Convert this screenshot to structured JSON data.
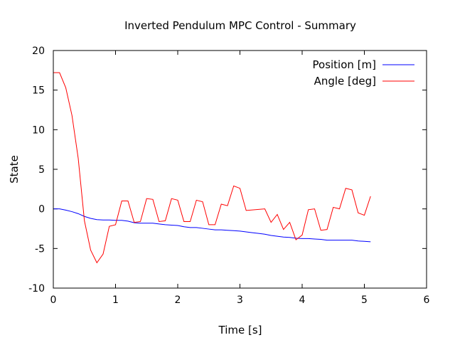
{
  "chart_data": {
    "type": "line",
    "title": "Inverted Pendulum MPC Control - Summary",
    "xlabel": "Time [s]",
    "ylabel": "State",
    "xlim": [
      0,
      6
    ],
    "ylim": [
      -10,
      20
    ],
    "xticks": [
      0,
      1,
      2,
      3,
      4,
      5,
      6
    ],
    "yticks": [
      -10,
      -5,
      0,
      5,
      10,
      15,
      20
    ],
    "grid": false,
    "legend_position": "top-right",
    "series": [
      {
        "name": "Position [m]",
        "color": "#0000ff",
        "points": [
          [
            0.0,
            0.0
          ],
          [
            0.1,
            0.0
          ],
          [
            0.2,
            -0.15
          ],
          [
            0.3,
            -0.35
          ],
          [
            0.4,
            -0.6
          ],
          [
            0.5,
            -0.95
          ],
          [
            0.6,
            -1.2
          ],
          [
            0.7,
            -1.35
          ],
          [
            0.8,
            -1.4
          ],
          [
            0.9,
            -1.4
          ],
          [
            1.0,
            -1.45
          ],
          [
            1.1,
            -1.45
          ],
          [
            1.2,
            -1.55
          ],
          [
            1.3,
            -1.75
          ],
          [
            1.4,
            -1.8
          ],
          [
            1.5,
            -1.8
          ],
          [
            1.6,
            -1.8
          ],
          [
            1.7,
            -1.9
          ],
          [
            1.8,
            -2.0
          ],
          [
            1.9,
            -2.05
          ],
          [
            2.0,
            -2.1
          ],
          [
            2.1,
            -2.25
          ],
          [
            2.2,
            -2.35
          ],
          [
            2.3,
            -2.35
          ],
          [
            2.4,
            -2.45
          ],
          [
            2.5,
            -2.55
          ],
          [
            2.6,
            -2.65
          ],
          [
            2.7,
            -2.65
          ],
          [
            2.8,
            -2.7
          ],
          [
            2.9,
            -2.75
          ],
          [
            3.0,
            -2.8
          ],
          [
            3.1,
            -2.9
          ],
          [
            3.2,
            -3.0
          ],
          [
            3.3,
            -3.1
          ],
          [
            3.4,
            -3.2
          ],
          [
            3.5,
            -3.35
          ],
          [
            3.6,
            -3.45
          ],
          [
            3.7,
            -3.55
          ],
          [
            3.8,
            -3.6
          ],
          [
            3.9,
            -3.7
          ],
          [
            4.0,
            -3.75
          ],
          [
            4.1,
            -3.75
          ],
          [
            4.2,
            -3.8
          ],
          [
            4.3,
            -3.85
          ],
          [
            4.4,
            -3.95
          ],
          [
            4.5,
            -3.95
          ],
          [
            4.6,
            -3.95
          ],
          [
            4.7,
            -3.95
          ],
          [
            4.8,
            -3.95
          ],
          [
            4.9,
            -4.05
          ],
          [
            5.0,
            -4.1
          ],
          [
            5.1,
            -4.15
          ]
        ]
      },
      {
        "name": "Angle [deg]",
        "color": "#ff0000",
        "points": [
          [
            0.0,
            17.2
          ],
          [
            0.1,
            17.2
          ],
          [
            0.2,
            15.3
          ],
          [
            0.3,
            11.8
          ],
          [
            0.4,
            6.4
          ],
          [
            0.5,
            -1.5
          ],
          [
            0.6,
            -5.2
          ],
          [
            0.7,
            -6.8
          ],
          [
            0.8,
            -5.7
          ],
          [
            0.9,
            -2.2
          ],
          [
            1.0,
            -2.0
          ],
          [
            1.1,
            1.0
          ],
          [
            1.2,
            1.0
          ],
          [
            1.3,
            -1.7
          ],
          [
            1.4,
            -1.6
          ],
          [
            1.5,
            1.3
          ],
          [
            1.6,
            1.2
          ],
          [
            1.7,
            -1.6
          ],
          [
            1.8,
            -1.5
          ],
          [
            1.9,
            1.3
          ],
          [
            2.0,
            1.1
          ],
          [
            2.1,
            -1.6
          ],
          [
            2.2,
            -1.6
          ],
          [
            2.3,
            1.1
          ],
          [
            2.4,
            0.9
          ],
          [
            2.5,
            -2.0
          ],
          [
            2.6,
            -2.0
          ],
          [
            2.7,
            0.6
          ],
          [
            2.8,
            0.4
          ],
          [
            2.9,
            2.9
          ],
          [
            3.0,
            2.6
          ],
          [
            3.1,
            -0.2
          ],
          [
            3.4,
            0.0
          ],
          [
            3.5,
            -1.7
          ],
          [
            3.6,
            -0.7
          ],
          [
            3.7,
            -2.6
          ],
          [
            3.8,
            -1.7
          ],
          [
            3.9,
            -3.9
          ],
          [
            4.0,
            -3.3
          ],
          [
            4.1,
            -0.1
          ],
          [
            4.2,
            0.0
          ],
          [
            4.3,
            -2.7
          ],
          [
            4.4,
            -2.6
          ],
          [
            4.5,
            0.2
          ],
          [
            4.6,
            0.0
          ],
          [
            4.7,
            2.6
          ],
          [
            4.8,
            2.4
          ],
          [
            4.9,
            -0.5
          ],
          [
            5.0,
            -0.8
          ],
          [
            5.1,
            1.6
          ]
        ]
      }
    ]
  }
}
